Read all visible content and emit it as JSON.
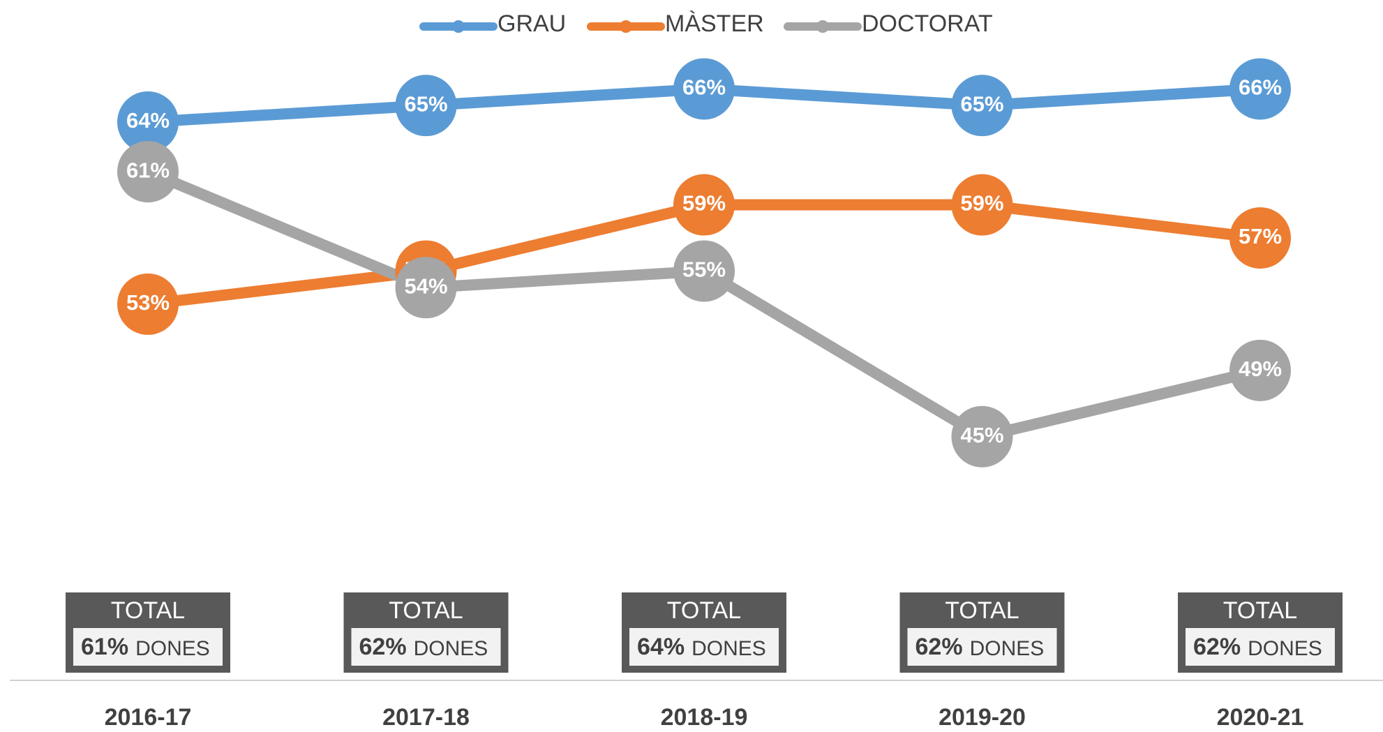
{
  "chart_data": {
    "type": "line",
    "categories": [
      "2016-17",
      "2017-18",
      "2018-19",
      "2019-20",
      "2020-21"
    ],
    "series": [
      {
        "name": "GRAU",
        "color": "#5b9bd5",
        "values": [
          64,
          65,
          66,
          65,
          66
        ],
        "value_labels": [
          "64%",
          "65%",
          "66%",
          "65%",
          "66%"
        ]
      },
      {
        "name": "MÀSTER",
        "color": "#ed7d31",
        "values": [
          53,
          55,
          59,
          59,
          57
        ],
        "value_labels": [
          "53%",
          "55%",
          "59%",
          "59%",
          "57%"
        ]
      },
      {
        "name": "DOCTORAT",
        "color": "#a5a5a5",
        "values": [
          61,
          54,
          55,
          45,
          49
        ],
        "value_labels": [
          "61%",
          "54%",
          "55%",
          "45%",
          "49%"
        ]
      }
    ],
    "ylim": [
      35,
      68
    ],
    "legend": "top",
    "totals": {
      "label": "TOTAL",
      "values": [
        61,
        62,
        64,
        62,
        62
      ],
      "value_labels": [
        "61%",
        "62%",
        "64%",
        "62%",
        "62%"
      ],
      "unit": "DONES"
    }
  }
}
